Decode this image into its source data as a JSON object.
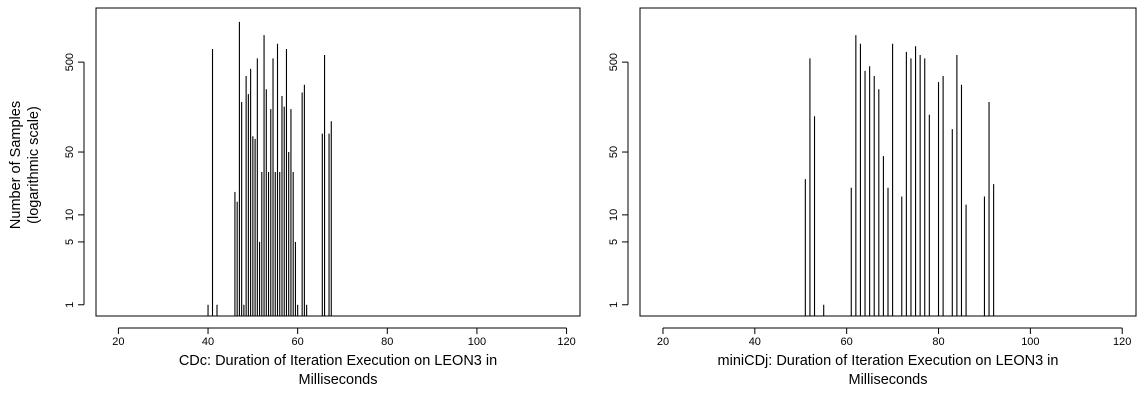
{
  "ylabel": [
    "Number of Samples",
    "(logarithmic scale)"
  ],
  "chart_data": [
    {
      "type": "bar",
      "title": "",
      "xlabel": [
        "CDc: Duration of Iteration Execution on LEON3 in",
        "Milliseconds"
      ],
      "ylabel": "Number of Samples (logarithmic scale)",
      "y_scale": "log",
      "xlim": [
        15,
        123
      ],
      "ylim": [
        0.75,
        2000
      ],
      "x_ticks": [
        20,
        40,
        60,
        80,
        100,
        120
      ],
      "y_ticks": [
        1,
        5,
        10,
        50,
        500
      ],
      "x": [
        40,
        41,
        42,
        46,
        46.5,
        47,
        47.5,
        48,
        48.5,
        49,
        49.5,
        50,
        50.5,
        51,
        51.5,
        52,
        52.5,
        53,
        53.5,
        54,
        54.5,
        55,
        55.5,
        56,
        56.5,
        57,
        57.5,
        58,
        58.5,
        59,
        59.5,
        60,
        61,
        61.5,
        62,
        65.5,
        66,
        67,
        67.5
      ],
      "values": [
        1,
        700,
        1,
        18,
        14,
        1400,
        180,
        1,
        350,
        220,
        420,
        75,
        70,
        550,
        5,
        30,
        1000,
        250,
        30,
        150,
        550,
        30,
        800,
        30,
        210,
        160,
        700,
        50,
        150,
        30,
        5,
        1,
        230,
        280,
        1,
        80,
        600,
        80,
        110
      ]
    },
    {
      "type": "bar",
      "title": "",
      "xlabel": [
        "miniCDj: Duration of Iteration Execution on LEON3 in",
        "Milliseconds"
      ],
      "ylabel": "",
      "y_scale": "log",
      "xlim": [
        15,
        123
      ],
      "ylim": [
        0.75,
        2000
      ],
      "x_ticks": [
        20,
        40,
        60,
        80,
        100,
        120
      ],
      "y_ticks": [
        1,
        5,
        10,
        50,
        500
      ],
      "x": [
        51,
        52,
        53,
        55,
        61,
        62,
        63,
        64,
        65,
        66,
        67,
        68,
        69,
        70,
        72,
        73,
        74,
        75,
        76,
        77,
        78,
        80,
        81,
        83,
        84,
        85,
        86,
        90,
        91,
        92
      ],
      "values": [
        25,
        550,
        125,
        1,
        20,
        1000,
        800,
        400,
        450,
        350,
        250,
        45,
        20,
        800,
        16,
        650,
        550,
        750,
        600,
        550,
        130,
        300,
        350,
        90,
        600,
        280,
        13,
        16,
        180,
        22
      ]
    }
  ]
}
